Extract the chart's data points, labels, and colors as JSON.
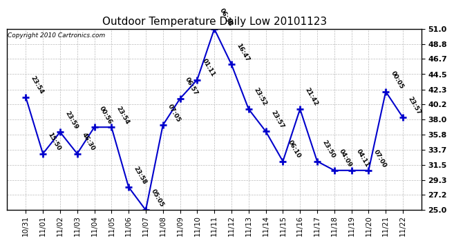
{
  "title": "Outdoor Temperature Daily Low 20101123",
  "copyright": "Copyright 2010 Cartronics.com",
  "x_labels": [
    "10/31",
    "11/01",
    "11/02",
    "11/03",
    "11/04",
    "11/05",
    "11/06",
    "11/07",
    "11/08",
    "11/09",
    "11/10",
    "11/11",
    "11/12",
    "11/13",
    "11/14",
    "11/15",
    "11/16",
    "11/17",
    "11/18",
    "11/19",
    "11/20",
    "11/21",
    "11/22"
  ],
  "y_values": [
    41.2,
    33.1,
    36.2,
    33.1,
    36.9,
    36.9,
    28.3,
    25.0,
    37.2,
    41.0,
    43.7,
    51.0,
    45.9,
    39.5,
    36.3,
    32.0,
    39.5,
    32.0,
    30.7,
    30.7,
    30.7,
    42.0,
    38.3
  ],
  "time_labels": [
    "23:54",
    "15:50",
    "23:59",
    "46:30",
    "00:56",
    "23:54",
    "23:58",
    "05:05",
    "07:05",
    "06:57",
    "01:11",
    "06:36",
    "16:47",
    "23:52",
    "23:57",
    "06:10",
    "21:42",
    "23:50",
    "04:09",
    "04:11",
    "07:00",
    "00:05",
    "23:57"
  ],
  "line_color": "#0000cc",
  "marker_color": "#0000cc",
  "bg_color": "#ffffff",
  "grid_color": "#bbbbbb",
  "ylim_min": 25.0,
  "ylim_max": 51.0,
  "yticks": [
    25.0,
    27.2,
    29.3,
    31.5,
    33.7,
    35.8,
    38.0,
    40.2,
    42.3,
    44.5,
    46.7,
    48.8,
    51.0
  ]
}
